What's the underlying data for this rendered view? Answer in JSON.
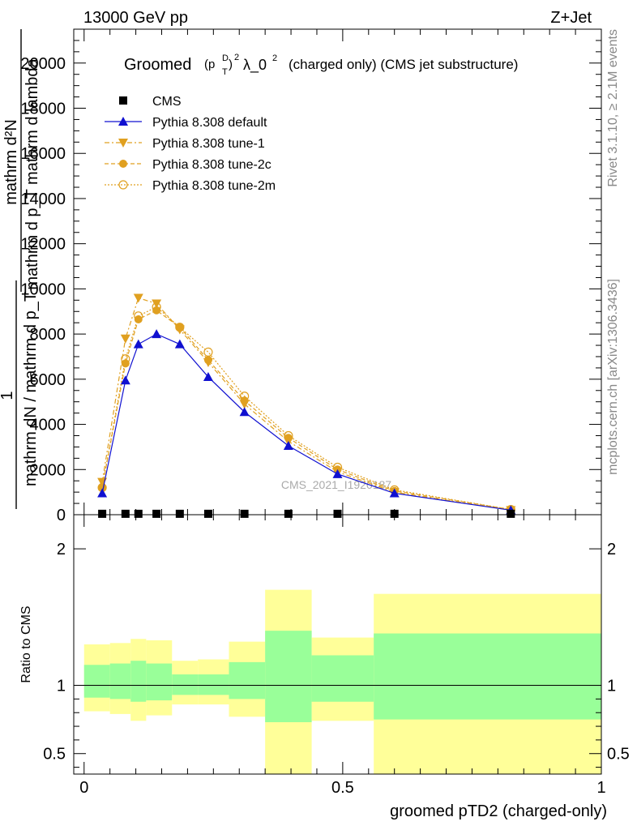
{
  "header": {
    "left": "13000 GeV pp",
    "right": "Z+Jet"
  },
  "side_labels": {
    "rivet": "Rivet 3.1.10, ≥ 2.1M events",
    "mcplots": "mcplots.cern.ch [arXiv:1306.3436]"
  },
  "chart_data": [
    {
      "type": "line",
      "title_parts": {
        "groomed": "Groomed",
        "rest": "λ_0",
        "suffix": "(charged only) (CMS jet substructure)"
      },
      "watermark": "CMS_2021_I1920187",
      "ylabel_lines": [
        "mathrm d²N",
        "mathrm d p_T mathrm d lambda",
        "1",
        "mathrm dN / mathrm d p_T"
      ],
      "ylim": [
        0,
        21500
      ],
      "xlim": [
        -0.02,
        1.0
      ],
      "yticks": [
        0,
        2000,
        4000,
        6000,
        8000,
        10000,
        12000,
        14000,
        16000,
        18000,
        20000
      ],
      "ytick_labels": [
        "0",
        "2000",
        "4000",
        "6000",
        "8000",
        "10000",
        "12000",
        "14000",
        "16000",
        "18000",
        "20000"
      ],
      "legend_position": "top-left",
      "series": [
        {
          "name": "CMS",
          "color": "#000000",
          "marker": "square",
          "x": [
            0.035,
            0.08,
            0.105,
            0.14,
            0.185,
            0.24,
            0.31,
            0.395,
            0.49,
            0.6,
            0.825
          ],
          "y": [
            40,
            40,
            40,
            40,
            40,
            40,
            40,
            40,
            40,
            40,
            40
          ]
        },
        {
          "name": "Pythia 8.308 default",
          "color": "#1010d0",
          "marker": "triangle-up",
          "dash": "",
          "x": [
            0.035,
            0.08,
            0.105,
            0.14,
            0.185,
            0.24,
            0.31,
            0.395,
            0.49,
            0.6,
            0.825
          ],
          "y": [
            950,
            5950,
            7550,
            8000,
            7550,
            6100,
            4550,
            3050,
            1800,
            950,
            200
          ]
        },
        {
          "name": "Pythia 8.308 tune-1",
          "color": "#e0a020",
          "marker": "triangle-down",
          "dash": "6,3,2,3",
          "x": [
            0.035,
            0.08,
            0.105,
            0.14,
            0.185,
            0.24,
            0.31,
            0.395,
            0.49,
            0.6,
            0.825
          ],
          "y": [
            1450,
            7800,
            9600,
            9350,
            8200,
            6750,
            4900,
            3250,
            1900,
            1000,
            200
          ]
        },
        {
          "name": "Pythia 8.308 tune-2c",
          "color": "#e0a020",
          "marker": "circle",
          "dash": "5,3",
          "x": [
            0.035,
            0.08,
            0.105,
            0.14,
            0.185,
            0.24,
            0.31,
            0.395,
            0.49,
            0.6,
            0.825
          ],
          "y": [
            1200,
            6700,
            8650,
            9050,
            8300,
            6850,
            5050,
            3400,
            2000,
            1050,
            230
          ]
        },
        {
          "name": "Pythia 8.308 tune-2m",
          "color": "#e0a020",
          "marker": "open-circle",
          "dash": "2,2",
          "x": [
            0.035,
            0.08,
            0.105,
            0.14,
            0.185,
            0.24,
            0.31,
            0.395,
            0.49,
            0.6,
            0.825
          ],
          "y": [
            1200,
            6900,
            8800,
            9200,
            8300,
            7200,
            5250,
            3500,
            2100,
            1100,
            230
          ]
        }
      ]
    },
    {
      "type": "area",
      "ylabel": "Ratio to CMS",
      "xlabel": "groomed pTD2 (charged-only)",
      "xlim": [
        -0.02,
        1.0
      ],
      "ylim": [
        0.35,
        2.25
      ],
      "yticks": [
        0.5,
        1,
        2
      ],
      "ytick_labels": [
        "0.5",
        "1",
        "2"
      ],
      "xticks": [
        0,
        0.5,
        1
      ],
      "xtick_labels": [
        "0",
        "0.5",
        "1"
      ],
      "reference_line": 1,
      "bins": [
        {
          "lo": 0.0,
          "hi": 0.05,
          "outer": [
            0.81,
            1.3
          ],
          "inner": [
            0.91,
            1.15
          ]
        },
        {
          "lo": 0.05,
          "hi": 0.09,
          "outer": [
            0.79,
            1.31
          ],
          "inner": [
            0.9,
            1.16
          ]
        },
        {
          "lo": 0.09,
          "hi": 0.12,
          "outer": [
            0.74,
            1.34
          ],
          "inner": [
            0.88,
            1.18
          ]
        },
        {
          "lo": 0.12,
          "hi": 0.17,
          "outer": [
            0.78,
            1.33
          ],
          "inner": [
            0.89,
            1.16
          ]
        },
        {
          "lo": 0.17,
          "hi": 0.22,
          "outer": [
            0.86,
            1.18
          ],
          "inner": [
            0.93,
            1.08
          ]
        },
        {
          "lo": 0.22,
          "hi": 0.28,
          "outer": [
            0.86,
            1.19
          ],
          "inner": [
            0.93,
            1.08
          ]
        },
        {
          "lo": 0.28,
          "hi": 0.35,
          "outer": [
            0.77,
            1.32
          ],
          "inner": [
            0.9,
            1.17
          ]
        },
        {
          "lo": 0.35,
          "hi": 0.44,
          "outer": [
            0.35,
            1.7
          ],
          "inner": [
            0.73,
            1.4
          ]
        },
        {
          "lo": 0.44,
          "hi": 0.56,
          "outer": [
            0.74,
            1.35
          ],
          "inner": [
            0.88,
            1.22
          ]
        },
        {
          "lo": 0.56,
          "hi": 1.0,
          "outer": [
            0.35,
            1.67
          ],
          "inner": [
            0.75,
            1.38
          ]
        }
      ],
      "band_colors": {
        "outer": "#ffff99",
        "inner": "#99ff99"
      }
    }
  ]
}
